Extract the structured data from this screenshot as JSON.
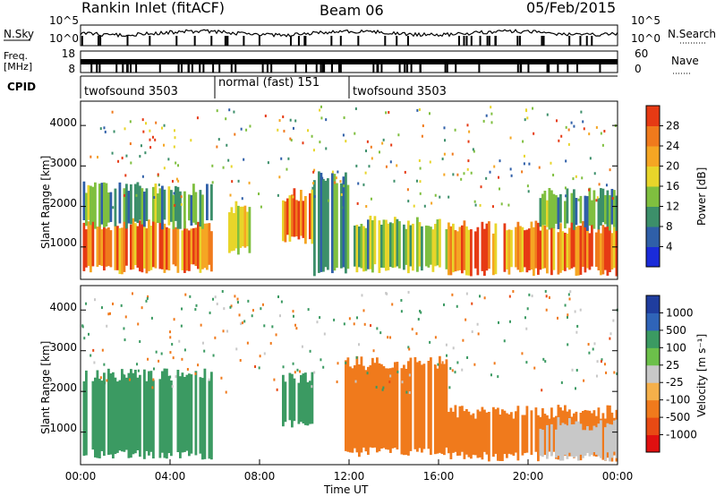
{
  "header": {
    "station": "Rankin Inlet (fitACF)",
    "beam": "Beam 06",
    "date": "05/Feb/2015"
  },
  "strips": {
    "noise": {
      "left_label": "N.Sky",
      "right_label": "N.Search",
      "left_ticks": [
        "10^5",
        "10^0"
      ],
      "right_ticks": [
        "10^5",
        "10^0"
      ]
    },
    "frequency": {
      "left_label_line1": "Freq.",
      "left_label_line2": "[MHz]",
      "left_ticks": [
        "18",
        "8"
      ],
      "right_label": "Nave",
      "right_ticks": [
        "60",
        "0"
      ]
    },
    "cpid": {
      "label": "CPID",
      "segments": [
        {
          "label": "twofsound 3503",
          "start_hour": 0,
          "end_hour": 6
        },
        {
          "label": "normal (fast) 151",
          "start_hour": 6,
          "end_hour": 12
        },
        {
          "label": "twofsound 3503",
          "start_hour": 12,
          "end_hour": 24
        }
      ]
    }
  },
  "chart_data": [
    {
      "type": "heatmap",
      "panel": "power",
      "ylabel": "Slant Range [km]",
      "y_ticks": [
        "1000",
        "2000",
        "3000",
        "4000"
      ],
      "ylim": [
        200,
        4600
      ],
      "xlim": [
        0,
        24
      ],
      "colorbar": {
        "label": "Power [dB]",
        "ticks": [
          "4",
          "8",
          "12",
          "16",
          "20",
          "24",
          "28"
        ],
        "colors": [
          "#1a2bd9",
          "#2f5fa8",
          "#3c8f6a",
          "#7fbf3f",
          "#e8d52a",
          "#f5a623",
          "#f07a1c",
          "#e63a14"
        ]
      },
      "regions": [
        {
          "x": [
            0.1,
            5.9
          ],
          "y": [
            450,
            1550
          ],
          "level": 26
        },
        {
          "x": [
            0.1,
            5.9
          ],
          "y": [
            1550,
            2450
          ],
          "level": 11
        },
        {
          "x": [
            6.6,
            7.6
          ],
          "y": [
            900,
            2000
          ],
          "level": 18
        },
        {
          "x": [
            9.0,
            10.4
          ],
          "y": [
            1200,
            2300
          ],
          "level": 24
        },
        {
          "x": [
            10.4,
            12.0
          ],
          "y": [
            400,
            2700
          ],
          "level": 10
        },
        {
          "x": [
            12.2,
            16.4
          ],
          "y": [
            450,
            1600
          ],
          "level": 13
        },
        {
          "x": [
            16.4,
            24.0
          ],
          "y": [
            400,
            1500
          ],
          "level": 27
        },
        {
          "x": [
            20.5,
            24.0
          ],
          "y": [
            1500,
            2300
          ],
          "level": 12
        }
      ]
    },
    {
      "type": "heatmap",
      "panel": "velocity",
      "ylabel": "Slant Range [km]",
      "xlabel": "Time UT",
      "x_ticks": [
        "00:00",
        "04:00",
        "08:00",
        "12:00",
        "16:00",
        "20:00",
        "00:00"
      ],
      "y_ticks": [
        "1000",
        "2000",
        "3000",
        "4000"
      ],
      "ylim": [
        200,
        4600
      ],
      "xlim": [
        0,
        24
      ],
      "colorbar": {
        "label": "Velocity [m s⁻¹]",
        "ticks": [
          "1000",
          "500",
          "100",
          "25",
          "-25",
          "-100",
          "-500",
          "-1000"
        ],
        "colors": [
          "#1f3d9e",
          "#2f64b8",
          "#3b9a62",
          "#6cc04a",
          "#c8c8c8",
          "#f5b04a",
          "#f07a1c",
          "#e84a14",
          "#e01010"
        ]
      },
      "regions": [
        {
          "x": [
            0.1,
            5.9
          ],
          "y": [
            450,
            2400
          ],
          "level": 300
        },
        {
          "x": [
            9.0,
            10.4
          ],
          "y": [
            1200,
            2300
          ],
          "level": 200
        },
        {
          "x": [
            11.8,
            16.4
          ],
          "y": [
            500,
            2700
          ],
          "level": -300
        },
        {
          "x": [
            16.4,
            24.0
          ],
          "y": [
            400,
            1500
          ],
          "level": -400
        },
        {
          "x": [
            20.5,
            24.0
          ],
          "y": [
            400,
            1200
          ],
          "level": 0
        }
      ]
    }
  ]
}
